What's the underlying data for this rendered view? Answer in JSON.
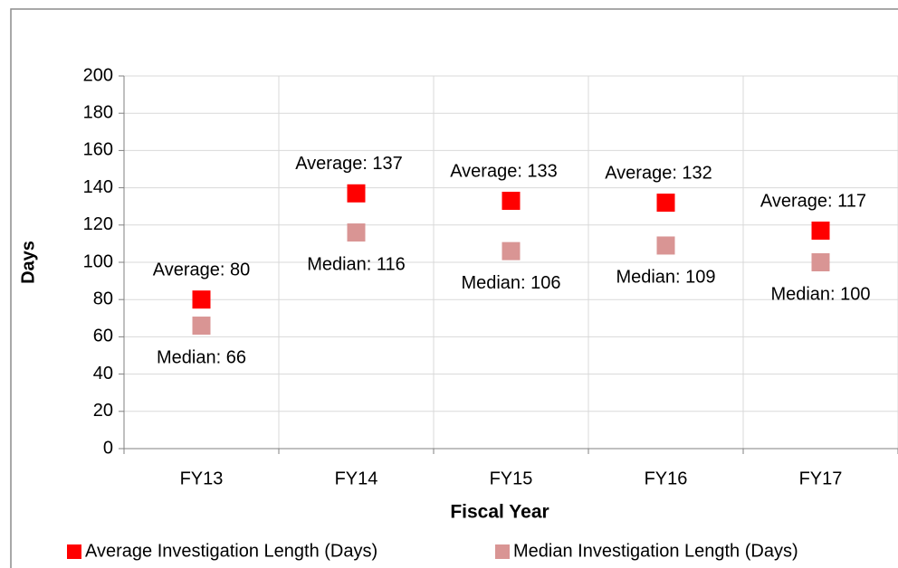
{
  "chart_data": {
    "type": "scatter",
    "x_label": "Fiscal Year",
    "y_label": "Days",
    "categories": [
      "FY13",
      "FY14",
      "FY15",
      "FY16",
      "FY17"
    ],
    "series": [
      {
        "name": "Average Investigation Length (Days)",
        "color": "#ff0000",
        "values": [
          80,
          137,
          133,
          132,
          117
        ],
        "value_labels": [
          "Average: 80",
          "Average: 137",
          "Average: 133",
          "Average: 132",
          "Average: 117"
        ]
      },
      {
        "name": "Median Investigation Length (Days)",
        "color": "#d99594",
        "values": [
          66,
          116,
          106,
          109,
          100
        ],
        "value_labels": [
          "Median: 66",
          "Median: 116",
          "Median: 106",
          "Median: 109",
          "Median: 100"
        ]
      }
    ],
    "ylim": [
      0,
      200
    ],
    "yticks": [
      0,
      20,
      40,
      60,
      80,
      100,
      120,
      140,
      160,
      180,
      200
    ],
    "grid": true,
    "legend": "bottom"
  }
}
